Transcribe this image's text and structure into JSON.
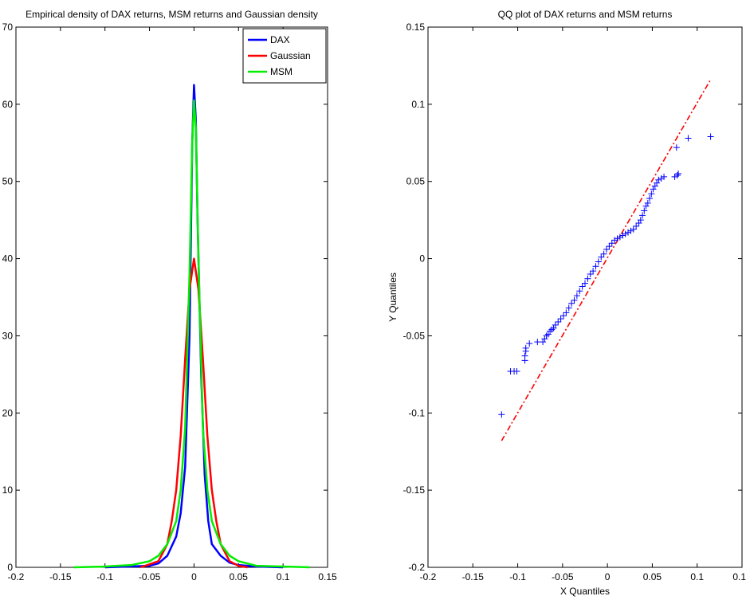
{
  "chart_data": [
    {
      "type": "line",
      "title": "Empirical density of DAX returns, MSM returns and Gaussian density",
      "xlabel": "",
      "ylabel": "",
      "xlim": [
        -0.2,
        0.15
      ],
      "ylim": [
        0,
        70
      ],
      "xticks": [
        -0.2,
        -0.15,
        -0.1,
        -0.05,
        0,
        0.05,
        0.1,
        0.15
      ],
      "xtick_labels": [
        "-0.2",
        "-0.15",
        "-0.1",
        "-0.05",
        "0",
        "0.05",
        "0.1",
        "0.15"
      ],
      "yticks": [
        0,
        10,
        20,
        30,
        40,
        50,
        60,
        70
      ],
      "ytick_labels": [
        "0",
        "10",
        "20",
        "30",
        "40",
        "50",
        "60",
        "70"
      ],
      "legend_position": "top-right",
      "series": [
        {
          "name": "DAX",
          "color": "#0000ff",
          "x": [
            -0.1,
            -0.05,
            -0.04,
            -0.03,
            -0.02,
            -0.015,
            -0.01,
            -0.005,
            -0.002,
            0,
            0.002,
            0.004,
            0.008,
            0.012,
            0.016,
            0.02,
            0.03,
            0.04,
            0.05,
            0.07,
            0.1
          ],
          "y": [
            0,
            0.2,
            0.5,
            1.5,
            4,
            7,
            13,
            30,
            55,
            62.5,
            58,
            45,
            25,
            12,
            6,
            3,
            1.5,
            0.6,
            0.3,
            0.1,
            0
          ]
        },
        {
          "name": "Gaussian",
          "color": "#ff0000",
          "x": [
            -0.06,
            -0.04,
            -0.03,
            -0.025,
            -0.02,
            -0.015,
            -0.01,
            -0.005,
            0,
            0.005,
            0.01,
            0.015,
            0.02,
            0.025,
            0.03,
            0.04,
            0.05,
            0.06
          ],
          "y": [
            0,
            0.8,
            3,
            6,
            10,
            17,
            27,
            36,
            40,
            36,
            27,
            17,
            10,
            6,
            3,
            0.8,
            0.2,
            0
          ]
        },
        {
          "name": "MSM",
          "color": "#00ee00",
          "x": [
            -0.135,
            -0.1,
            -0.07,
            -0.05,
            -0.04,
            -0.03,
            -0.02,
            -0.015,
            -0.01,
            -0.005,
            -0.002,
            0,
            0.002,
            0.005,
            0.01,
            0.015,
            0.02,
            0.03,
            0.04,
            0.05,
            0.07,
            0.1,
            0.13
          ],
          "y": [
            0,
            0.1,
            0.3,
            0.8,
            1.5,
            3,
            6,
            10,
            18,
            38,
            55,
            60.5,
            57,
            40,
            18,
            10,
            6,
            3,
            1.5,
            0.8,
            0.2,
            0.1,
            0
          ]
        }
      ]
    },
    {
      "type": "scatter",
      "title": "QQ plot of DAX returns and MSM returns",
      "xlabel": "X Quantiles",
      "ylabel": "Y Quantiles",
      "xlim": [
        -0.2,
        0.15
      ],
      "ylim": [
        -0.2,
        0.15
      ],
      "xticks": [
        -0.2,
        -0.15,
        -0.1,
        -0.05,
        0,
        0.05,
        0.1,
        0.15
      ],
      "xtick_labels": [
        "-0.2",
        "-0.15",
        "-0.1",
        "-0.05",
        "0",
        "0.05",
        "0.1",
        "0.15"
      ],
      "yticks": [
        -0.2,
        -0.15,
        -0.1,
        -0.05,
        0,
        0.05,
        0.1,
        0.15
      ],
      "ytick_labels": [
        "-0.2",
        "-0.15",
        "-0.1",
        "-0.05",
        "0",
        "0.05",
        "0.1",
        "0.15"
      ],
      "marker": "+",
      "marker_color": "#0000ff",
      "x": [
        -0.118,
        -0.108,
        -0.104,
        -0.101,
        -0.092,
        -0.092,
        -0.091,
        -0.091,
        -0.087,
        -0.078,
        -0.072,
        -0.07,
        -0.068,
        -0.066,
        -0.064,
        -0.062,
        -0.06,
        -0.058,
        -0.055,
        -0.052,
        -0.049,
        -0.046,
        -0.043,
        -0.04,
        -0.037,
        -0.034,
        -0.031,
        -0.028,
        -0.025,
        -0.022,
        -0.019,
        -0.016,
        -0.013,
        -0.01,
        -0.007,
        -0.004,
        -0.001,
        0.002,
        0.005,
        0.008,
        0.011,
        0.014,
        0.017,
        0.02,
        0.023,
        0.026,
        0.029,
        0.032,
        0.035,
        0.037,
        0.039,
        0.041,
        0.043,
        0.045,
        0.047,
        0.049,
        0.051,
        0.053,
        0.055,
        0.057,
        0.06,
        0.063,
        0.075,
        0.078,
        0.079,
        0.077,
        0.09,
        0.115
      ],
      "y": [
        -0.101,
        -0.073,
        -0.073,
        -0.073,
        -0.066,
        -0.063,
        -0.06,
        -0.058,
        -0.055,
        -0.054,
        -0.054,
        -0.052,
        -0.05,
        -0.049,
        -0.047,
        -0.046,
        -0.045,
        -0.043,
        -0.041,
        -0.039,
        -0.037,
        -0.035,
        -0.032,
        -0.029,
        -0.027,
        -0.024,
        -0.021,
        -0.018,
        -0.016,
        -0.013,
        -0.01,
        -0.008,
        -0.005,
        -0.002,
        0.001,
        0.003,
        0.006,
        0.008,
        0.01,
        0.012,
        0.013,
        0.014,
        0.015,
        0.016,
        0.017,
        0.018,
        0.019,
        0.021,
        0.023,
        0.025,
        0.028,
        0.031,
        0.034,
        0.036,
        0.039,
        0.042,
        0.045,
        0.047,
        0.049,
        0.051,
        0.052,
        0.053,
        0.053,
        0.054,
        0.055,
        0.072,
        0.078,
        0.079
      ],
      "reference_line": {
        "style": "dash-dot",
        "color": "#ff0000",
        "x": [
          -0.118,
          0.115
        ],
        "y": [
          -0.118,
          0.116
        ]
      }
    }
  ]
}
